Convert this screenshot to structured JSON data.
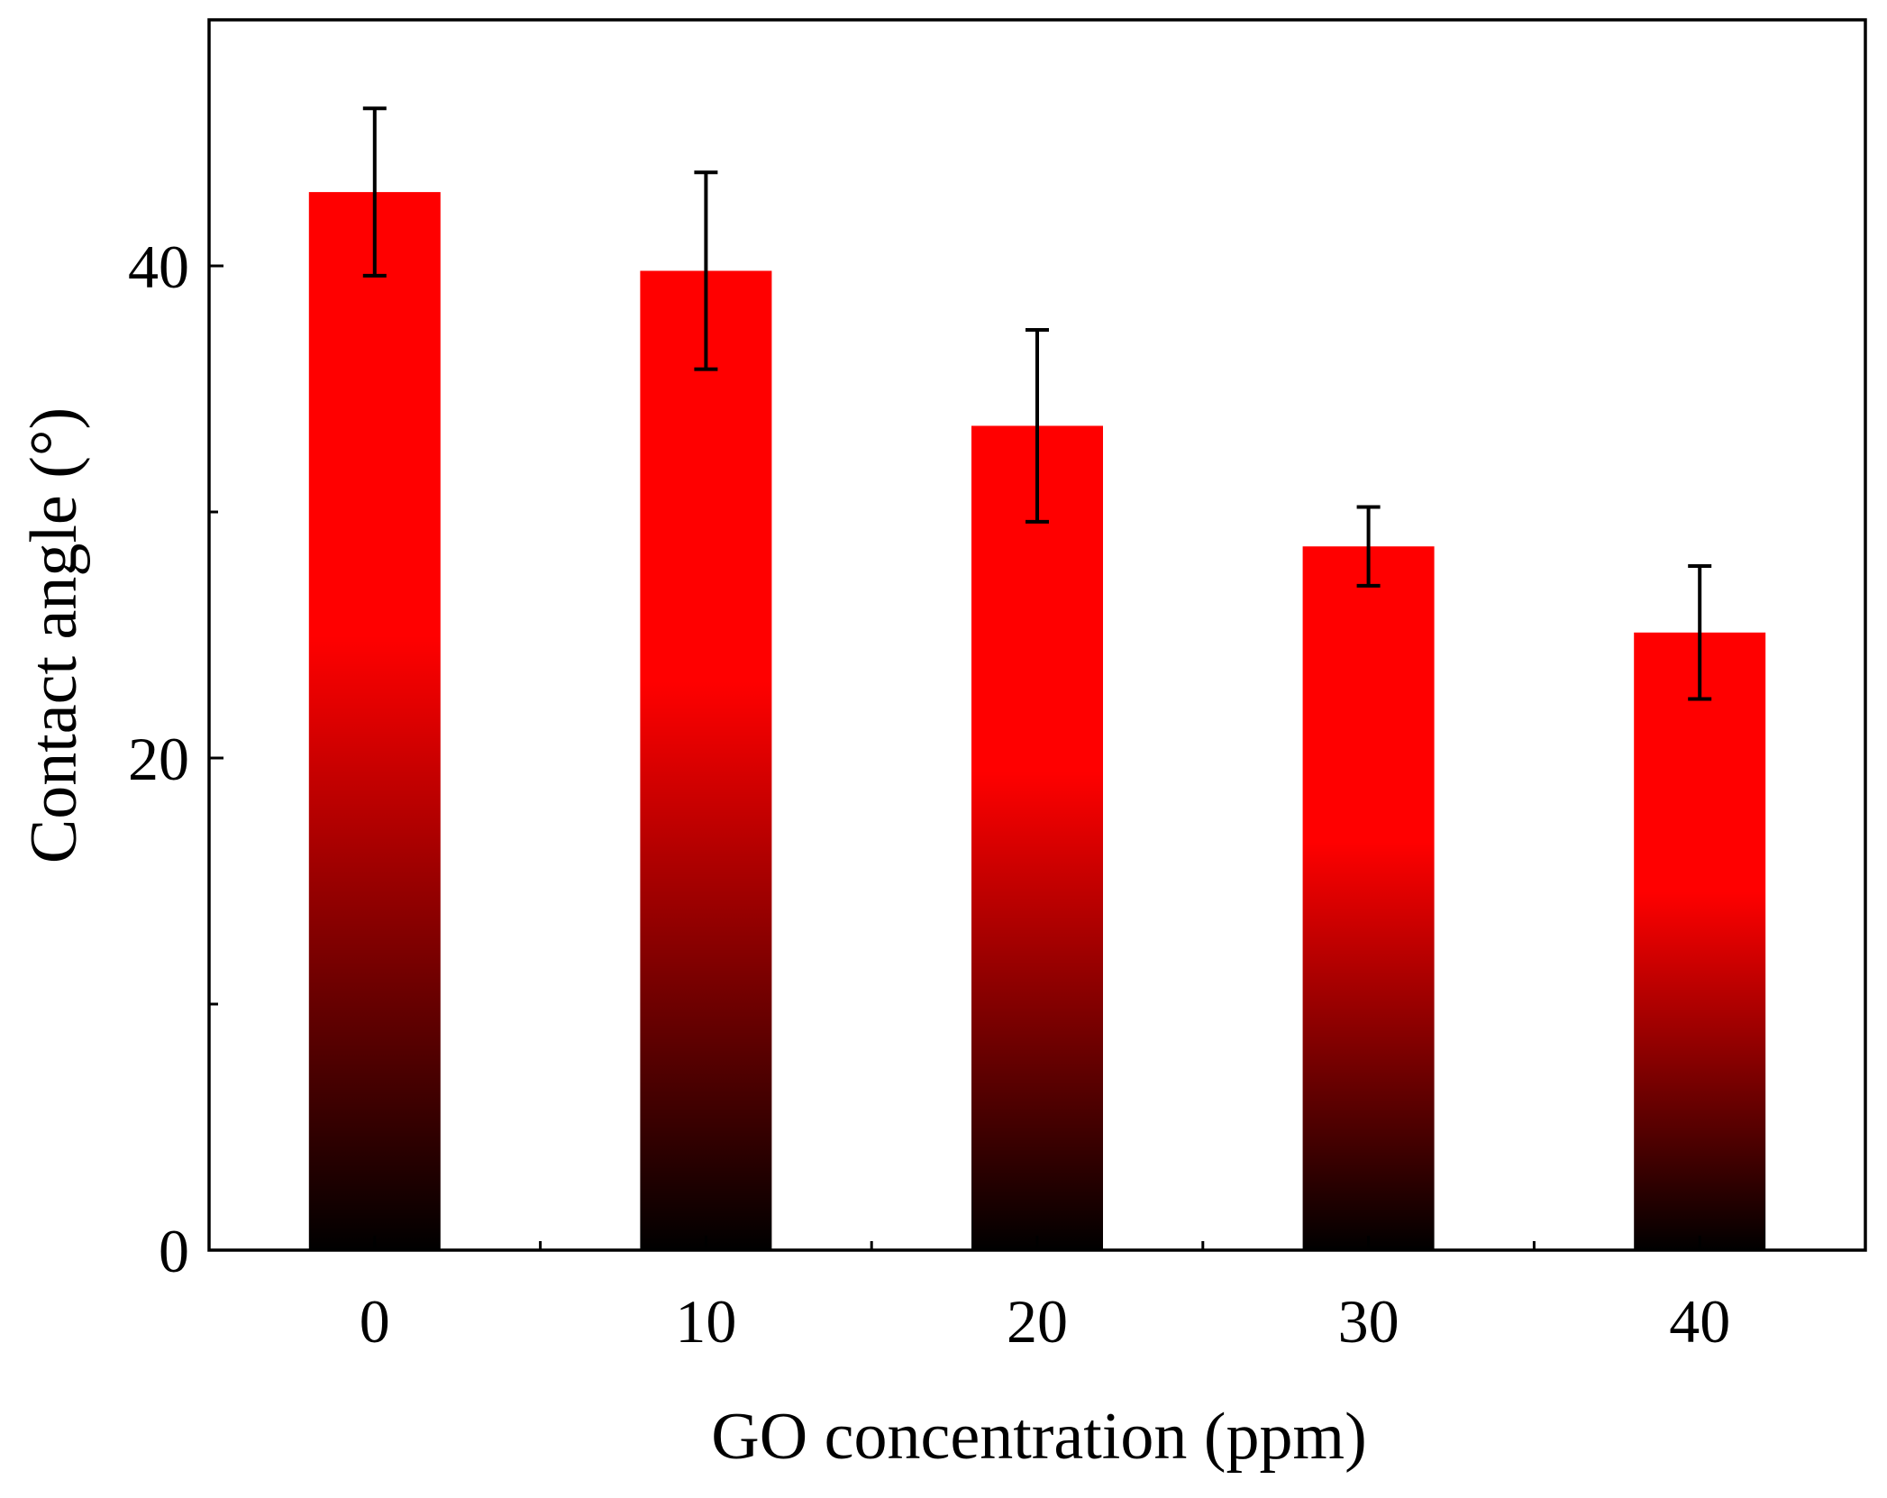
{
  "chart_data": {
    "type": "bar",
    "title": "",
    "xlabel": "GO concentration (ppm)",
    "ylabel": "Contact angle (°)",
    "categories": [
      "0",
      "10",
      "20",
      "30",
      "40"
    ],
    "values": [
      43.0,
      39.8,
      33.5,
      28.6,
      25.1
    ],
    "errors": [
      3.4,
      4.0,
      3.9,
      1.6,
      2.7
    ],
    "ylim": [
      0,
      50
    ],
    "yticks": [
      0,
      20,
      40
    ],
    "yticks_minor": [
      10,
      30
    ],
    "ytick_labels": [
      "0",
      "20",
      "40"
    ],
    "grid": false,
    "legend": "none"
  },
  "colors": {
    "bar_top": "#ff0000",
    "bar_bottom": "#000000",
    "axis": "#000000",
    "error_bar": "#000000"
  }
}
